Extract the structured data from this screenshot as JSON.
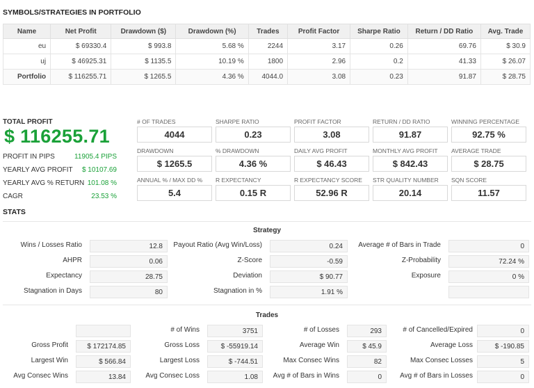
{
  "portfolio": {
    "title": "SYMBOLS/STRATEGIES IN PORTFOLIO",
    "headers": [
      "Name",
      "Net Profit",
      "Drawdown ($)",
      "Drawdown (%)",
      "Trades",
      "Profit Factor",
      "Sharpe Ratio",
      "Return / DD Ratio",
      "Avg. Trade"
    ],
    "rows": [
      [
        "eu",
        "$ 69330.4",
        "$ 993.8",
        "5.68 %",
        "2244",
        "3.17",
        "0.26",
        "69.76",
        "$ 30.9"
      ],
      [
        "uj",
        "$ 46925.31",
        "$ 1135.5",
        "10.19 %",
        "1800",
        "2.96",
        "0.2",
        "41.33",
        "$ 26.07"
      ],
      [
        "Portfolio",
        "$ 116255.71",
        "$ 1265.5",
        "4.36 %",
        "4044.0",
        "3.08",
        "0.23",
        "91.87",
        "$ 28.75"
      ]
    ]
  },
  "summary": {
    "total_profit_label": "TOTAL PROFIT",
    "total_profit_value": "$ 116255.71",
    "items": [
      {
        "label": "PROFIT IN PIPS",
        "value": "11905.4 PIPS"
      },
      {
        "label": "YEARLY AVG PROFIT",
        "value": "$ 10107.69"
      },
      {
        "label": "YEARLY AVG % RETURN",
        "value": "101.08 %"
      },
      {
        "label": "CAGR",
        "value": "23.53 %"
      }
    ],
    "metrics": [
      {
        "label": "# OF TRADES",
        "value": "4044"
      },
      {
        "label": "SHARPE RATIO",
        "value": "0.23"
      },
      {
        "label": "PROFIT FACTOR",
        "value": "3.08"
      },
      {
        "label": "RETURN / DD RATIO",
        "value": "91.87"
      },
      {
        "label": "WINNING PERCENTAGE",
        "value": "92.75 %"
      },
      {
        "label": "DRAWDOWN",
        "value": "$ 1265.5"
      },
      {
        "label": "% DRAWDOWN",
        "value": "4.36 %"
      },
      {
        "label": "DAILY AVG PROFIT",
        "value": "$ 46.43"
      },
      {
        "label": "MONTHLY AVG PROFIT",
        "value": "$ 842.43"
      },
      {
        "label": "AVERAGE TRADE",
        "value": "$ 28.75"
      },
      {
        "label": "ANNUAL % / MAX DD %",
        "value": "5.4"
      },
      {
        "label": "R EXPECTANCY",
        "value": "0.15 R"
      },
      {
        "label": "R EXPECTANCY SCORE",
        "value": "52.96 R"
      },
      {
        "label": "STR QUALITY NUMBER",
        "value": "20.14"
      },
      {
        "label": "SQN SCORE",
        "value": "11.57"
      }
    ]
  },
  "stats": {
    "title": "STATS",
    "strategy_title": "Strategy",
    "strategy": [
      {
        "label": "Wins / Losses Ratio",
        "value": "12.8"
      },
      {
        "label": "Payout Ratio (Avg Win/Loss)",
        "value": "0.24"
      },
      {
        "label": "Average # of Bars in Trade",
        "value": "0"
      },
      {
        "label": "AHPR",
        "value": "0.06"
      },
      {
        "label": "Z-Score",
        "value": "-0.59"
      },
      {
        "label": "Z-Probability",
        "value": "72.24 %"
      },
      {
        "label": "Expectancy",
        "value": "28.75"
      },
      {
        "label": "Deviation",
        "value": "$ 90.77"
      },
      {
        "label": "Exposure",
        "value": "0 %"
      },
      {
        "label": "Stagnation in Days",
        "value": "80"
      },
      {
        "label": "Stagnation in %",
        "value": "1.91 %"
      },
      {
        "label": "",
        "value": ""
      }
    ],
    "trades_title": "Trades",
    "trades": [
      {
        "label": "",
        "value": ""
      },
      {
        "label": "# of Wins",
        "value": "3751"
      },
      {
        "label": "# of Losses",
        "value": "293"
      },
      {
        "label": "# of Cancelled/Expired",
        "value": "0"
      },
      {
        "label": "Gross Profit",
        "value": "$ 172174.85"
      },
      {
        "label": "Gross Loss",
        "value": "$ -55919.14"
      },
      {
        "label": "Average Win",
        "value": "$ 45.9"
      },
      {
        "label": "Average Loss",
        "value": "$ -190.85"
      },
      {
        "label": "Largest Win",
        "value": "$ 566.84"
      },
      {
        "label": "Largest Loss",
        "value": "$ -744.51"
      },
      {
        "label": "Max Consec Wins",
        "value": "82"
      },
      {
        "label": "Max Consec Losses",
        "value": "5"
      },
      {
        "label": "Avg Consec Wins",
        "value": "13.84"
      },
      {
        "label": "Avg Consec Loss",
        "value": "1.08"
      },
      {
        "label": "Avg # of Bars in Wins",
        "value": "0"
      },
      {
        "label": "Avg # of Bars in Losses",
        "value": "0"
      }
    ]
  }
}
